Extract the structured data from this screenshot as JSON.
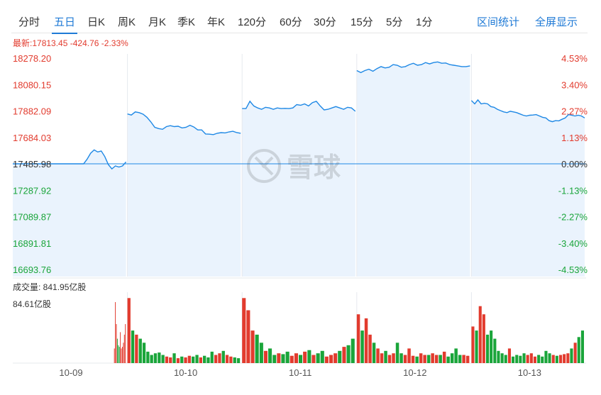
{
  "tabs": [
    {
      "label": "分时"
    },
    {
      "label": "五日",
      "active": true
    },
    {
      "label": "日K"
    },
    {
      "label": "周K"
    },
    {
      "label": "月K"
    },
    {
      "label": "季K"
    },
    {
      "label": "年K"
    },
    {
      "label": "120分"
    },
    {
      "label": "60分"
    },
    {
      "label": "30分"
    },
    {
      "label": "15分"
    },
    {
      "label": "5分"
    },
    {
      "label": "1分"
    }
  ],
  "tools": {
    "interval_stats": "区间统计",
    "fullscreen": "全屏显示"
  },
  "quote": {
    "label": "最新:",
    "price": "17813.45",
    "change": "-424.76",
    "percent": "-2.33%"
  },
  "watermark": "雪球",
  "volume": {
    "title": "成交量: 841.95亿股",
    "max_label": "84.61亿股"
  },
  "colors": {
    "up": "#e23b2e",
    "down": "#1aa53a",
    "line": "#1e88e5",
    "fill": "#eaf3fd",
    "base": "#1e88e5"
  },
  "chart_data": {
    "type": "line",
    "title": "",
    "base_price": 17485.98,
    "ylim": [
      16693.76,
      18278.2
    ],
    "y_ticks_left": [
      "18278.20",
      "18080.15",
      "17882.09",
      "17684.03",
      "17485.98",
      "17287.92",
      "17089.87",
      "16891.81",
      "16693.76"
    ],
    "y_ticks_right": [
      "4.53%",
      "3.40%",
      "2.27%",
      "1.13%",
      "0.00%",
      "-1.13%",
      "-2.27%",
      "-3.40%",
      "-4.53%"
    ],
    "days": [
      "10-09",
      "10-10",
      "10-11",
      "10-12",
      "10-13"
    ],
    "price_series": [
      [
        17486,
        17486,
        17486,
        17486,
        17486,
        17486,
        17486,
        17486,
        17486,
        17486,
        17486,
        17486,
        17486,
        17486,
        17486,
        17486,
        17486,
        17486,
        17486,
        17486,
        17486,
        17520,
        17565,
        17590,
        17575,
        17582,
        17540,
        17480,
        17448,
        17470,
        17462,
        17470,
        17500
      ],
      [
        17860,
        17852,
        17875,
        17870,
        17858,
        17835,
        17800,
        17760,
        17750,
        17745,
        17765,
        17772,
        17765,
        17768,
        17755,
        17760,
        17775,
        17762,
        17740,
        17740,
        17710,
        17708,
        17705,
        17715,
        17720,
        17718,
        17725,
        17730,
        17720,
        17715
      ],
      [
        17900,
        17900,
        17955,
        17920,
        17905,
        17895,
        17910,
        17905,
        17895,
        17905,
        17900,
        17902,
        17900,
        17905,
        17930,
        17925,
        17935,
        17920,
        17945,
        17955,
        17920,
        17890,
        17895,
        17905,
        17915,
        17905,
        17895,
        17910,
        17905,
        17880
      ],
      [
        18185,
        18170,
        18185,
        18195,
        18180,
        18200,
        18215,
        18205,
        18210,
        18230,
        18225,
        18210,
        18215,
        18230,
        18240,
        18225,
        18230,
        18245,
        18235,
        18245,
        18250,
        18240,
        18242,
        18230,
        18225,
        18220,
        18215,
        18215,
        18220
      ],
      [
        17960,
        17935,
        17965,
        17935,
        17940,
        17935,
        17915,
        17910,
        17895,
        17885,
        17875,
        17870,
        17880,
        17875,
        17870,
        17860,
        17850,
        17845,
        17850,
        17852,
        17855,
        17845,
        17835,
        17830,
        17810,
        17802,
        17810,
        17808,
        17820,
        17830,
        17855,
        17850,
        17845,
        17850,
        17845,
        17830
      ]
    ],
    "volume_max": 84.61,
    "volume_bars": [
      [
        0,
        0,
        0,
        0,
        0,
        0,
        0,
        0,
        0,
        0,
        0,
        0,
        0,
        0,
        0,
        0,
        0,
        0,
        0,
        0,
        0,
        0,
        0,
        0,
        0,
        0,
        0,
        0,
        0,
        0,
        0,
        0,
        0,
        0,
        0,
        0,
        0,
        0,
        0,
        0,
        0,
        0,
        0,
        0,
        0,
        0,
        0,
        0,
        0,
        0,
        0,
        0,
        0,
        0,
        0,
        0,
        0,
        0,
        0,
        0,
        0,
        0,
        0,
        0,
        0,
        0,
        0,
        0,
        0,
        0,
        0,
        0,
        0,
        0,
        0,
        0,
        0,
        0,
        0,
        0,
        0,
        0,
        0,
        0,
        0,
        0,
        0,
        0,
        0,
        0,
        0,
        0,
        0,
        0,
        0,
        0,
        0,
        0,
        0,
        0,
        0,
        18,
        75,
        48,
        30,
        22,
        20,
        38,
        18,
        20,
        25,
        35,
        48
      ],
      [
        80,
        40,
        35,
        30,
        25,
        14,
        10,
        12,
        13,
        10,
        8,
        7,
        12,
        6,
        8,
        7,
        9,
        8,
        10,
        7,
        9,
        7,
        14,
        10,
        12,
        15,
        10,
        8,
        7,
        6
      ],
      [
        80,
        65,
        40,
        35,
        25,
        15,
        18,
        10,
        12,
        11,
        14,
        9,
        12,
        10,
        14,
        16,
        10,
        12,
        15,
        8,
        10,
        12,
        15,
        20,
        22,
        30
      ],
      [
        60,
        40,
        55,
        35,
        25,
        18,
        12,
        15,
        10,
        12,
        25,
        12,
        10,
        18,
        9,
        8,
        12,
        10,
        10,
        12,
        10,
        10,
        14,
        8,
        12,
        18,
        10,
        10,
        9
      ],
      [
        45,
        40,
        70,
        60,
        35,
        40,
        30,
        15,
        12,
        10,
        18,
        8,
        10,
        9,
        12,
        10,
        12,
        8,
        10,
        8,
        15,
        12,
        10,
        9,
        10,
        11,
        12,
        18,
        25,
        32,
        40
      ]
    ]
  }
}
